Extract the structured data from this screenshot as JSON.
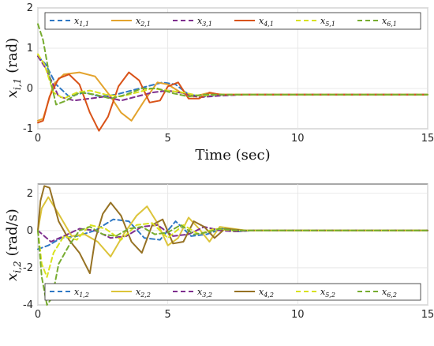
{
  "chart_data": [
    {
      "type": "line",
      "xlabel": "Time (sec)",
      "ylabel": "x_{i,1} (rad)",
      "ylabel_var": "x",
      "ylabel_sub": "i,1",
      "ylabel_unit": "(rad)",
      "xlim": [
        0,
        15
      ],
      "ylim": [
        -1,
        2
      ],
      "xticks": [
        "0",
        "5",
        "10",
        "15"
      ],
      "yticks": [
        "-1",
        "0",
        "1",
        "2"
      ],
      "grid": true,
      "legend_placement": "top",
      "series": [
        {
          "name": "x1,1",
          "sym": "x",
          "sub": "1,1",
          "color": "#2f78c4",
          "dash": true,
          "x": [
            0,
            0.3,
            0.7,
            1.2,
            1.8,
            2.4,
            3.0,
            3.6,
            4.2,
            4.8,
            5.3,
            5.8,
            6.4,
            7.0,
            8.0,
            15
          ],
          "y": [
            0.8,
            0.6,
            0.1,
            -0.2,
            -0.1,
            -0.2,
            -0.15,
            -0.05,
            0.05,
            0.15,
            0.1,
            -0.15,
            -0.2,
            -0.17,
            -0.15,
            -0.15
          ]
        },
        {
          "name": "x2,1",
          "sym": "x",
          "sub": "2,1",
          "color": "#e3a32d",
          "dash": false,
          "x": [
            0,
            0.2,
            0.6,
            1.0,
            1.6,
            2.2,
            2.8,
            3.2,
            3.6,
            4.1,
            4.6,
            5.0,
            5.5,
            6.0,
            6.5,
            7.2,
            8.0,
            15
          ],
          "y": [
            -0.8,
            -0.75,
            0.1,
            0.35,
            0.4,
            0.3,
            -0.2,
            -0.6,
            -0.8,
            -0.3,
            0.15,
            0.1,
            -0.1,
            -0.2,
            -0.12,
            -0.15,
            -0.15,
            -0.15
          ]
        },
        {
          "name": "x3,1",
          "sym": "x",
          "sub": "3,1",
          "color": "#7e2f8e",
          "dash": true,
          "x": [
            0,
            0.3,
            0.8,
            1.4,
            2.0,
            2.6,
            3.2,
            3.8,
            4.4,
            5.0,
            5.6,
            6.2,
            7.0,
            8.0,
            15
          ],
          "y": [
            0.8,
            0.5,
            -0.2,
            -0.3,
            -0.25,
            -0.2,
            -0.3,
            -0.2,
            -0.1,
            -0.05,
            -0.12,
            -0.22,
            -0.18,
            -0.15,
            -0.15
          ]
        },
        {
          "name": "x4,1",
          "sym": "x",
          "sub": "4,1",
          "color": "#d95319",
          "dash": false,
          "x": [
            0,
            0.2,
            0.45,
            0.8,
            1.2,
            1.6,
            2.0,
            2.35,
            2.7,
            3.1,
            3.5,
            3.9,
            4.3,
            4.7,
            5.0,
            5.4,
            5.8,
            6.2,
            6.6,
            7.0,
            8.0,
            15
          ],
          "y": [
            -0.85,
            -0.8,
            -0.2,
            0.25,
            0.35,
            0.1,
            -0.6,
            -1.05,
            -0.7,
            0.05,
            0.4,
            0.2,
            -0.35,
            -0.3,
            0.05,
            0.15,
            -0.25,
            -0.25,
            -0.1,
            -0.15,
            -0.15,
            -0.15
          ]
        },
        {
          "name": "x5,1",
          "sym": "x",
          "sub": "5,1",
          "color": "#d9e21f",
          "dash": true,
          "x": [
            0,
            0.25,
            0.6,
            1.0,
            1.5,
            2.0,
            2.6,
            3.2,
            3.8,
            4.4,
            5.0,
            5.6,
            6.2,
            7.0,
            8.0,
            15
          ],
          "y": [
            0.85,
            0.6,
            -0.1,
            -0.25,
            -0.1,
            -0.05,
            -0.15,
            -0.2,
            -0.1,
            0.0,
            -0.05,
            -0.1,
            -0.18,
            -0.15,
            -0.15,
            -0.15
          ]
        },
        {
          "name": "x6,1",
          "sym": "x",
          "sub": "6,1",
          "color": "#77ac30",
          "dash": true,
          "x": [
            0,
            0.2,
            0.45,
            0.7,
            1.1,
            1.6,
            2.2,
            2.8,
            3.4,
            4.0,
            4.6,
            5.2,
            5.8,
            6.4,
            7.0,
            8.0,
            15
          ],
          "y": [
            1.6,
            1.2,
            0.3,
            -0.4,
            -0.3,
            -0.1,
            -0.15,
            -0.25,
            -0.15,
            0.0,
            0.0,
            -0.12,
            -0.2,
            -0.15,
            -0.15,
            -0.15,
            -0.15
          ]
        }
      ]
    },
    {
      "type": "line",
      "xlabel": "",
      "ylabel": "x_{i,2} (rad/s)",
      "ylabel_var": "x",
      "ylabel_sub": "i,2",
      "ylabel_unit": "(rad/s)",
      "xlim": [
        0,
        15
      ],
      "ylim": [
        -4,
        2.5
      ],
      "xticks": [
        "0",
        "5",
        "10",
        "15"
      ],
      "yticks": [
        "-4",
        "-2",
        "0",
        "2"
      ],
      "grid": true,
      "legend_placement": "bottom",
      "series": [
        {
          "name": "x1,2",
          "sym": "x",
          "sub": "1,2",
          "color": "#2f78c4",
          "dash": true,
          "x": [
            0,
            0.4,
            0.9,
            1.5,
            2.2,
            2.9,
            3.5,
            4.1,
            4.7,
            5.3,
            5.9,
            6.5,
            7.1,
            7.7,
            8.3,
            15
          ],
          "y": [
            -1.0,
            -0.8,
            -0.4,
            -0.3,
            0.0,
            0.6,
            0.5,
            -0.4,
            -0.5,
            0.5,
            -0.3,
            -0.2,
            0.1,
            -0.05,
            0.0,
            0.0
          ]
        },
        {
          "name": "x2,2",
          "sym": "x",
          "sub": "2,2",
          "color": "#dcc43a",
          "dash": false,
          "x": [
            0,
            0.15,
            0.4,
            0.8,
            1.3,
            1.8,
            2.3,
            2.8,
            3.3,
            3.8,
            4.2,
            4.6,
            5.0,
            5.4,
            5.8,
            6.2,
            6.6,
            7.0,
            7.5,
            8.0,
            15
          ],
          "y": [
            0,
            1.2,
            1.8,
            0.9,
            -0.3,
            -0.2,
            -0.6,
            -1.4,
            -0.2,
            0.8,
            1.3,
            0.4,
            -0.8,
            -0.4,
            0.7,
            0.1,
            -0.6,
            0.2,
            0.1,
            0.0,
            0.0
          ]
        },
        {
          "name": "x3,2",
          "sym": "x",
          "sub": "3,2",
          "color": "#7e2f8e",
          "dash": true,
          "x": [
            0,
            0.5,
            1.0,
            1.6,
            2.2,
            2.8,
            3.4,
            4.0,
            4.6,
            5.2,
            5.8,
            6.4,
            7.0,
            7.6,
            8.2,
            15
          ],
          "y": [
            0,
            -0.6,
            -0.3,
            0.1,
            0.0,
            -0.4,
            -0.3,
            0.2,
            0.3,
            -0.3,
            -0.2,
            0.2,
            0.0,
            -0.05,
            0.0,
            0.0
          ]
        },
        {
          "name": "x4,2",
          "sym": "x",
          "sub": "4,2",
          "color": "#967224",
          "dash": false,
          "x": [
            0,
            0.1,
            0.25,
            0.45,
            0.8,
            1.2,
            1.6,
            2.0,
            2.2,
            2.5,
            2.8,
            3.2,
            3.6,
            4.0,
            4.4,
            4.8,
            5.2,
            5.6,
            6.0,
            6.4,
            6.8,
            7.2,
            7.6,
            8.0,
            15
          ],
          "y": [
            0,
            1.6,
            2.4,
            2.3,
            0.5,
            -0.5,
            -1.2,
            -2.3,
            -0.5,
            0.9,
            1.5,
            0.8,
            -0.6,
            -1.2,
            0.3,
            0.6,
            -0.7,
            -0.6,
            0.5,
            0.2,
            -0.4,
            0.1,
            0.05,
            0.0,
            0.0
          ]
        },
        {
          "name": "x5,2",
          "sym": "x",
          "sub": "5,2",
          "color": "#d9e21f",
          "dash": true,
          "x": [
            0,
            0.15,
            0.35,
            0.6,
            1.0,
            1.5,
            2.0,
            2.6,
            3.2,
            3.8,
            4.4,
            5.0,
            5.6,
            6.2,
            6.8,
            7.5,
            8.2,
            15
          ],
          "y": [
            0,
            -1.8,
            -2.5,
            -1.2,
            -0.3,
            -0.5,
            0.3,
            0.1,
            -0.5,
            0.3,
            0.4,
            -0.4,
            0.3,
            -0.2,
            0.1,
            0.0,
            0.0,
            0.0
          ]
        },
        {
          "name": "x6,2",
          "sym": "x",
          "sub": "6,2",
          "color": "#77ac30",
          "dash": true,
          "x": [
            0,
            0.15,
            0.35,
            0.55,
            0.8,
            1.2,
            1.6,
            2.0,
            2.5,
            3.0,
            3.5,
            4.0,
            4.5,
            5.0,
            5.5,
            6.0,
            6.5,
            7.0,
            7.6,
            8.2,
            15
          ],
          "y": [
            0,
            -2.5,
            -4.0,
            -3.6,
            -1.8,
            -0.8,
            0.0,
            0.2,
            -0.2,
            -0.3,
            0.1,
            0.2,
            -0.2,
            -0.1,
            0.3,
            -0.2,
            -0.1,
            0.1,
            0.0,
            0.0,
            0.0
          ]
        }
      ]
    }
  ]
}
